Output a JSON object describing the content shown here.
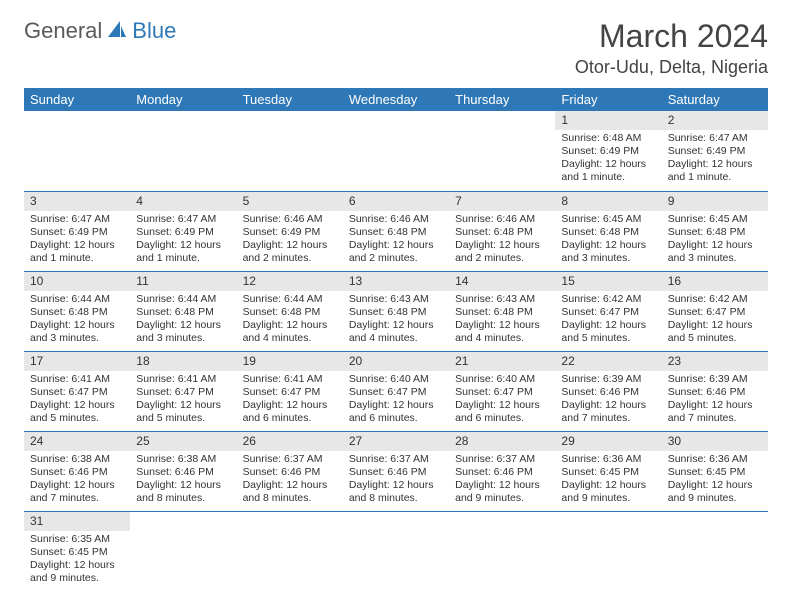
{
  "logo": {
    "text1": "General",
    "text2": "Blue"
  },
  "title": "March 2024",
  "location": "Otor-Udu, Delta, Nigeria",
  "colors": {
    "header_bg": "#2f78b7",
    "header_fg": "#ffffff",
    "daynum_bg": "#e7e7e7",
    "row_divider": "#2f78b7",
    "logo_gray": "#5a5a5a",
    "logo_blue": "#2f78b7"
  },
  "dayHeaders": [
    "Sunday",
    "Monday",
    "Tuesday",
    "Wednesday",
    "Thursday",
    "Friday",
    "Saturday"
  ],
  "weeks": [
    [
      null,
      null,
      null,
      null,
      null,
      {
        "n": "1",
        "sr": "Sunrise: 6:48 AM",
        "ss": "Sunset: 6:49 PM",
        "d1": "Daylight: 12 hours",
        "d2": "and 1 minute."
      },
      {
        "n": "2",
        "sr": "Sunrise: 6:47 AM",
        "ss": "Sunset: 6:49 PM",
        "d1": "Daylight: 12 hours",
        "d2": "and 1 minute."
      }
    ],
    [
      {
        "n": "3",
        "sr": "Sunrise: 6:47 AM",
        "ss": "Sunset: 6:49 PM",
        "d1": "Daylight: 12 hours",
        "d2": "and 1 minute."
      },
      {
        "n": "4",
        "sr": "Sunrise: 6:47 AM",
        "ss": "Sunset: 6:49 PM",
        "d1": "Daylight: 12 hours",
        "d2": "and 1 minute."
      },
      {
        "n": "5",
        "sr": "Sunrise: 6:46 AM",
        "ss": "Sunset: 6:49 PM",
        "d1": "Daylight: 12 hours",
        "d2": "and 2 minutes."
      },
      {
        "n": "6",
        "sr": "Sunrise: 6:46 AM",
        "ss": "Sunset: 6:48 PM",
        "d1": "Daylight: 12 hours",
        "d2": "and 2 minutes."
      },
      {
        "n": "7",
        "sr": "Sunrise: 6:46 AM",
        "ss": "Sunset: 6:48 PM",
        "d1": "Daylight: 12 hours",
        "d2": "and 2 minutes."
      },
      {
        "n": "8",
        "sr": "Sunrise: 6:45 AM",
        "ss": "Sunset: 6:48 PM",
        "d1": "Daylight: 12 hours",
        "d2": "and 3 minutes."
      },
      {
        "n": "9",
        "sr": "Sunrise: 6:45 AM",
        "ss": "Sunset: 6:48 PM",
        "d1": "Daylight: 12 hours",
        "d2": "and 3 minutes."
      }
    ],
    [
      {
        "n": "10",
        "sr": "Sunrise: 6:44 AM",
        "ss": "Sunset: 6:48 PM",
        "d1": "Daylight: 12 hours",
        "d2": "and 3 minutes."
      },
      {
        "n": "11",
        "sr": "Sunrise: 6:44 AM",
        "ss": "Sunset: 6:48 PM",
        "d1": "Daylight: 12 hours",
        "d2": "and 3 minutes."
      },
      {
        "n": "12",
        "sr": "Sunrise: 6:44 AM",
        "ss": "Sunset: 6:48 PM",
        "d1": "Daylight: 12 hours",
        "d2": "and 4 minutes."
      },
      {
        "n": "13",
        "sr": "Sunrise: 6:43 AM",
        "ss": "Sunset: 6:48 PM",
        "d1": "Daylight: 12 hours",
        "d2": "and 4 minutes."
      },
      {
        "n": "14",
        "sr": "Sunrise: 6:43 AM",
        "ss": "Sunset: 6:48 PM",
        "d1": "Daylight: 12 hours",
        "d2": "and 4 minutes."
      },
      {
        "n": "15",
        "sr": "Sunrise: 6:42 AM",
        "ss": "Sunset: 6:47 PM",
        "d1": "Daylight: 12 hours",
        "d2": "and 5 minutes."
      },
      {
        "n": "16",
        "sr": "Sunrise: 6:42 AM",
        "ss": "Sunset: 6:47 PM",
        "d1": "Daylight: 12 hours",
        "d2": "and 5 minutes."
      }
    ],
    [
      {
        "n": "17",
        "sr": "Sunrise: 6:41 AM",
        "ss": "Sunset: 6:47 PM",
        "d1": "Daylight: 12 hours",
        "d2": "and 5 minutes."
      },
      {
        "n": "18",
        "sr": "Sunrise: 6:41 AM",
        "ss": "Sunset: 6:47 PM",
        "d1": "Daylight: 12 hours",
        "d2": "and 5 minutes."
      },
      {
        "n": "19",
        "sr": "Sunrise: 6:41 AM",
        "ss": "Sunset: 6:47 PM",
        "d1": "Daylight: 12 hours",
        "d2": "and 6 minutes."
      },
      {
        "n": "20",
        "sr": "Sunrise: 6:40 AM",
        "ss": "Sunset: 6:47 PM",
        "d1": "Daylight: 12 hours",
        "d2": "and 6 minutes."
      },
      {
        "n": "21",
        "sr": "Sunrise: 6:40 AM",
        "ss": "Sunset: 6:47 PM",
        "d1": "Daylight: 12 hours",
        "d2": "and 6 minutes."
      },
      {
        "n": "22",
        "sr": "Sunrise: 6:39 AM",
        "ss": "Sunset: 6:46 PM",
        "d1": "Daylight: 12 hours",
        "d2": "and 7 minutes."
      },
      {
        "n": "23",
        "sr": "Sunrise: 6:39 AM",
        "ss": "Sunset: 6:46 PM",
        "d1": "Daylight: 12 hours",
        "d2": "and 7 minutes."
      }
    ],
    [
      {
        "n": "24",
        "sr": "Sunrise: 6:38 AM",
        "ss": "Sunset: 6:46 PM",
        "d1": "Daylight: 12 hours",
        "d2": "and 7 minutes."
      },
      {
        "n": "25",
        "sr": "Sunrise: 6:38 AM",
        "ss": "Sunset: 6:46 PM",
        "d1": "Daylight: 12 hours",
        "d2": "and 8 minutes."
      },
      {
        "n": "26",
        "sr": "Sunrise: 6:37 AM",
        "ss": "Sunset: 6:46 PM",
        "d1": "Daylight: 12 hours",
        "d2": "and 8 minutes."
      },
      {
        "n": "27",
        "sr": "Sunrise: 6:37 AM",
        "ss": "Sunset: 6:46 PM",
        "d1": "Daylight: 12 hours",
        "d2": "and 8 minutes."
      },
      {
        "n": "28",
        "sr": "Sunrise: 6:37 AM",
        "ss": "Sunset: 6:46 PM",
        "d1": "Daylight: 12 hours",
        "d2": "and 9 minutes."
      },
      {
        "n": "29",
        "sr": "Sunrise: 6:36 AM",
        "ss": "Sunset: 6:45 PM",
        "d1": "Daylight: 12 hours",
        "d2": "and 9 minutes."
      },
      {
        "n": "30",
        "sr": "Sunrise: 6:36 AM",
        "ss": "Sunset: 6:45 PM",
        "d1": "Daylight: 12 hours",
        "d2": "and 9 minutes."
      }
    ],
    [
      {
        "n": "31",
        "sr": "Sunrise: 6:35 AM",
        "ss": "Sunset: 6:45 PM",
        "d1": "Daylight: 12 hours",
        "d2": "and 9 minutes."
      },
      null,
      null,
      null,
      null,
      null,
      null
    ]
  ]
}
